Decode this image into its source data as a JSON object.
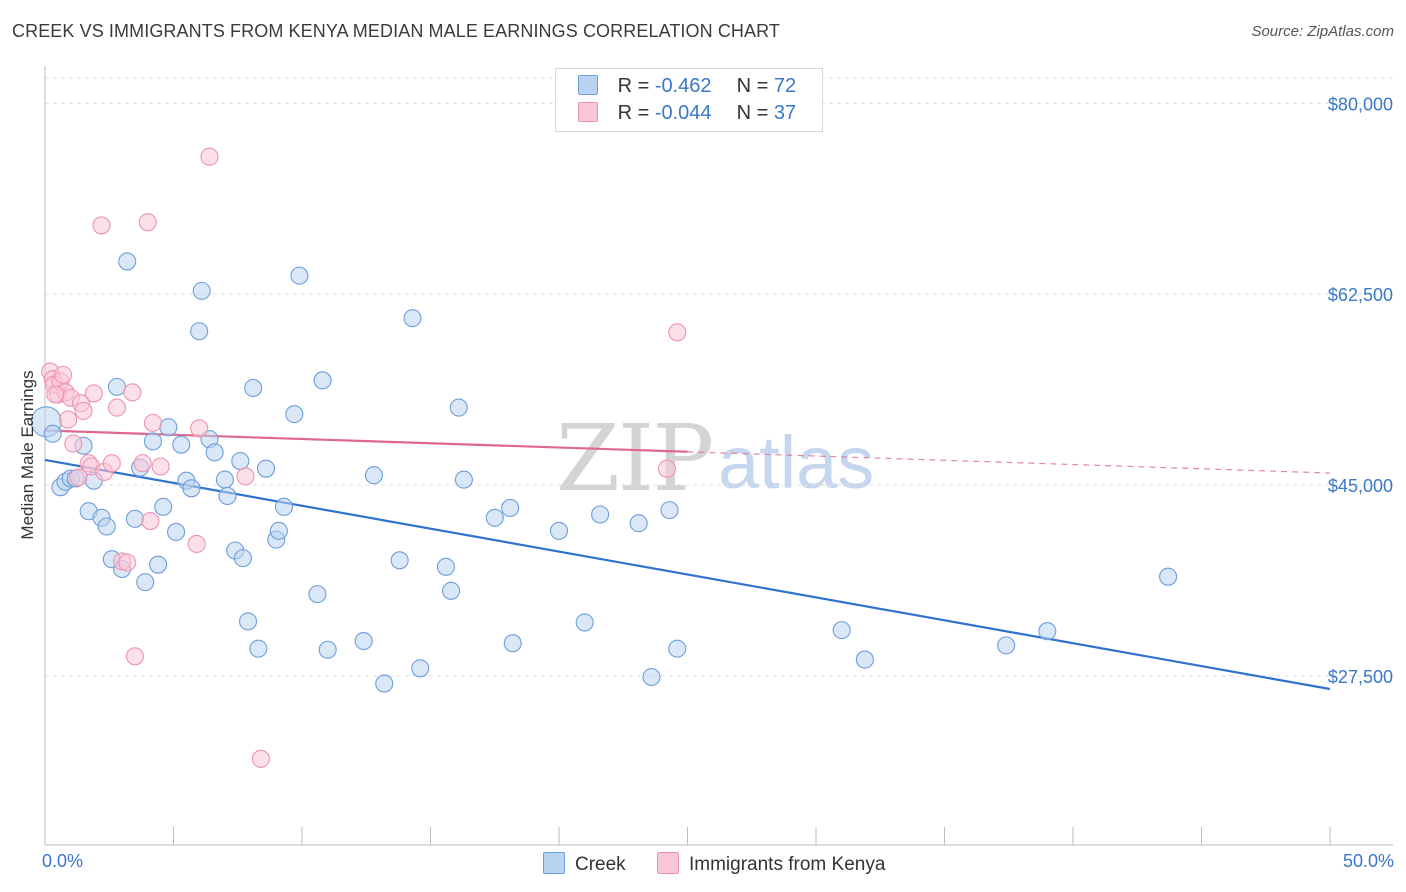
{
  "header": {
    "title": "CREEK VS IMMIGRANTS FROM KENYA MEDIAN MALE EARNINGS CORRELATION CHART",
    "source": "Source: ZipAtlas.com"
  },
  "watermark": {
    "zip": "ZIP",
    "atlas": "atlas"
  },
  "colors": {
    "creek_fill": "#b9d3f1",
    "creek_stroke": "#6e9ed9",
    "creek_line": "#2f72d0",
    "kenya_fill": "#f9c7d7",
    "kenya_stroke": "#ee93b1",
    "kenya_line": "#e0688f",
    "tick_text": "#3a78c9",
    "grid": "#dddddd"
  },
  "stats": {
    "creek": {
      "r_label": "R = ",
      "r_value": "-0.462",
      "n_label": "N = ",
      "n_value": "72"
    },
    "kenya": {
      "r_label": "R = ",
      "r_value": "-0.044",
      "n_label": "N = ",
      "n_value": "37"
    }
  },
  "legend": {
    "creek": "Creek",
    "kenya": "Immigrants from Kenya"
  },
  "chart_data": {
    "type": "scatter",
    "title": "CREEK VS IMMIGRANTS FROM KENYA MEDIAN MALE EARNINGS CORRELATION CHART",
    "xlabel": "",
    "ylabel": "Median Male Earnings",
    "xlim": [
      0,
      50
    ],
    "ylim": [
      12000,
      82500
    ],
    "x_tick_labels": [
      "0.0%",
      "50.0%"
    ],
    "x_minor_ticks": [
      0,
      5,
      10,
      15,
      20,
      25,
      30,
      35,
      40,
      45,
      50
    ],
    "y_ticks": [
      {
        "value": 80000,
        "label": "$80,000"
      },
      {
        "value": 62500,
        "label": "$62,500"
      },
      {
        "value": 45000,
        "label": "$45,000"
      },
      {
        "value": 27500,
        "label": "$27,500"
      }
    ],
    "grid": true,
    "series": [
      {
        "name": "Creek",
        "points": [
          [
            0.05,
            50.8
          ],
          [
            0.3,
            49.7
          ],
          [
            0.6,
            44.8
          ],
          [
            0.8,
            45.3
          ],
          [
            1.0,
            45.6
          ],
          [
            1.2,
            45.6
          ],
          [
            1.5,
            48.6
          ],
          [
            1.7,
            42.6
          ],
          [
            1.9,
            45.4
          ],
          [
            2.2,
            42.0
          ],
          [
            2.4,
            41.2
          ],
          [
            2.6,
            38.2
          ],
          [
            2.8,
            54.0
          ],
          [
            3.0,
            37.3
          ],
          [
            3.2,
            65.5
          ],
          [
            3.5,
            41.9
          ],
          [
            3.7,
            46.6
          ],
          [
            3.9,
            36.1
          ],
          [
            4.2,
            49.0
          ],
          [
            4.4,
            37.7
          ],
          [
            4.6,
            43.0
          ],
          [
            4.8,
            50.3
          ],
          [
            5.1,
            40.7
          ],
          [
            5.3,
            48.7
          ],
          [
            5.5,
            45.4
          ],
          [
            5.7,
            44.7
          ],
          [
            6.0,
            59.1
          ],
          [
            6.1,
            62.8
          ],
          [
            6.4,
            49.2
          ],
          [
            6.6,
            48.0
          ],
          [
            7.0,
            45.5
          ],
          [
            7.1,
            44.0
          ],
          [
            7.4,
            39.0
          ],
          [
            7.6,
            47.2
          ],
          [
            7.7,
            38.3
          ],
          [
            7.9,
            32.5
          ],
          [
            8.1,
            53.9
          ],
          [
            8.3,
            30.0
          ],
          [
            8.6,
            46.5
          ],
          [
            9.0,
            40.0
          ],
          [
            9.1,
            40.8
          ],
          [
            9.3,
            43.0
          ],
          [
            9.7,
            51.5
          ],
          [
            9.9,
            64.2
          ],
          [
            10.6,
            35.0
          ],
          [
            10.8,
            54.6
          ],
          [
            11.0,
            29.9
          ],
          [
            12.4,
            30.7
          ],
          [
            12.8,
            45.9
          ],
          [
            13.2,
            26.8
          ],
          [
            13.8,
            38.1
          ],
          [
            14.3,
            60.3
          ],
          [
            14.6,
            28.2
          ],
          [
            15.6,
            37.5
          ],
          [
            15.8,
            35.3
          ],
          [
            16.1,
            52.1
          ],
          [
            16.3,
            45.5
          ],
          [
            17.5,
            42.0
          ],
          [
            18.1,
            42.9
          ],
          [
            18.2,
            30.5
          ],
          [
            20.0,
            40.8
          ],
          [
            21.0,
            32.4
          ],
          [
            21.6,
            42.3
          ],
          [
            23.1,
            41.5
          ],
          [
            23.6,
            27.4
          ],
          [
            24.3,
            42.7
          ],
          [
            24.6,
            30.0
          ],
          [
            31.0,
            31.7
          ],
          [
            31.9,
            29.0
          ],
          [
            37.4,
            30.3
          ],
          [
            39.0,
            31.6
          ],
          [
            43.7,
            36.6
          ]
        ],
        "trend": {
          "x": [
            0,
            50
          ],
          "y": [
            47.3,
            26.3
          ]
        }
      },
      {
        "name": "Immigrants from Kenya",
        "points": [
          [
            0.2,
            55.4
          ],
          [
            0.3,
            54.7
          ],
          [
            0.35,
            54.2
          ],
          [
            0.5,
            53.3
          ],
          [
            0.6,
            54.5
          ],
          [
            0.7,
            55.1
          ],
          [
            0.8,
            53.5
          ],
          [
            0.9,
            51.0
          ],
          [
            1.0,
            53.0
          ],
          [
            1.1,
            48.8
          ],
          [
            1.3,
            45.7
          ],
          [
            1.4,
            52.5
          ],
          [
            1.5,
            51.8
          ],
          [
            1.7,
            47.0
          ],
          [
            1.8,
            46.7
          ],
          [
            1.9,
            53.4
          ],
          [
            2.2,
            68.8
          ],
          [
            2.3,
            46.2
          ],
          [
            2.6,
            47.0
          ],
          [
            2.8,
            52.1
          ],
          [
            3.0,
            38.0
          ],
          [
            3.2,
            37.9
          ],
          [
            3.4,
            53.5
          ],
          [
            3.5,
            29.3
          ],
          [
            3.8,
            47.0
          ],
          [
            4.0,
            69.1
          ],
          [
            4.1,
            41.7
          ],
          [
            4.2,
            50.7
          ],
          [
            4.5,
            46.7
          ],
          [
            5.9,
            39.6
          ],
          [
            6.0,
            50.2
          ],
          [
            6.4,
            75.1
          ],
          [
            7.8,
            45.8
          ],
          [
            8.4,
            19.9
          ],
          [
            24.2,
            46.5
          ],
          [
            24.6,
            59.0
          ],
          [
            0.4,
            53.3
          ]
        ],
        "trend": {
          "x": [
            0,
            50
          ],
          "y": [
            50.0,
            46.1
          ]
        },
        "trend_solid_until_x": 25
      }
    ]
  },
  "y_value_units_note": "point y values in thousands of dollars"
}
